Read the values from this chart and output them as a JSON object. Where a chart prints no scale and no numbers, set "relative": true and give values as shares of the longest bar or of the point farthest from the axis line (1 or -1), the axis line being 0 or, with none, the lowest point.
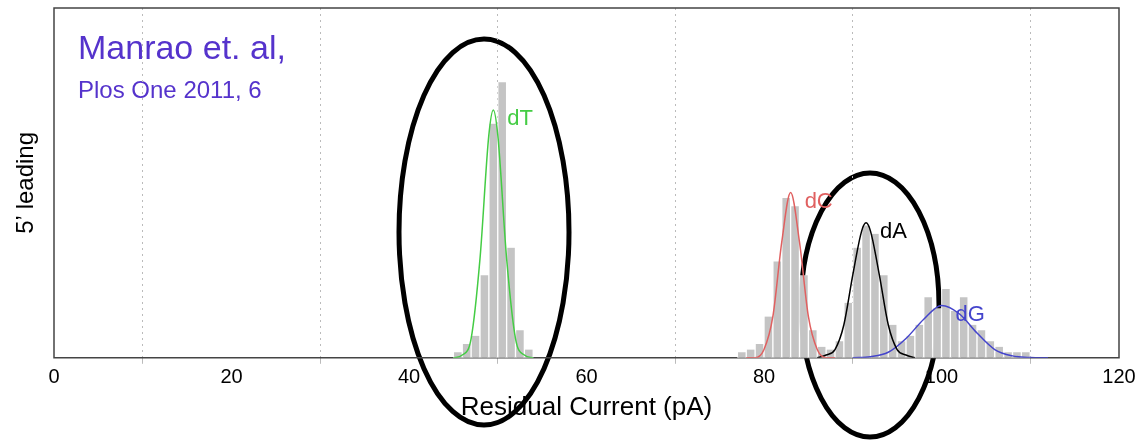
{
  "chart_data": {
    "type": "histogram",
    "relative": true,
    "xlabel": "Residual Current (pA)",
    "ylabel": "5’ leading",
    "annotations": [
      "Manrao et. al,",
      "Plos One 2011, 6"
    ],
    "xlim": [
      0,
      120
    ],
    "xticks": [
      0,
      20,
      40,
      60,
      80,
      100,
      120
    ],
    "grid": "x",
    "legend": false,
    "series": [
      {
        "type": "histogram",
        "color": "#c4c4c4",
        "bins": [
          45,
          46,
          47,
          48,
          49,
          50,
          51,
          52,
          53,
          54
        ],
        "values": [
          0.02,
          0.05,
          0.08,
          0.3,
          0.85,
          1.0,
          0.4,
          0.1,
          0.03
        ]
      },
      {
        "type": "histogram",
        "color": "#c4c4c4",
        "bins": [
          77,
          78,
          79,
          80,
          81,
          82,
          83,
          84,
          85,
          86,
          87,
          88,
          89,
          90,
          91,
          92,
          93,
          94,
          95,
          96,
          97,
          98,
          99,
          100,
          101,
          102,
          103,
          104,
          105,
          106,
          107,
          108,
          109,
          110
        ],
        "values": [
          0.02,
          0.03,
          0.05,
          0.15,
          0.35,
          0.58,
          0.55,
          0.3,
          0.1,
          0.04,
          0.03,
          0.06,
          0.2,
          0.4,
          0.48,
          0.45,
          0.3,
          0.12,
          0.06,
          0.08,
          0.12,
          0.22,
          0.18,
          0.25,
          0.17,
          0.22,
          0.12,
          0.1,
          0.06,
          0.04,
          0.02,
          0.02,
          0.02
        ]
      },
      {
        "type": "line",
        "name": "dT",
        "color": "#44cc44",
        "x": [
          45,
          46,
          47,
          48,
          49,
          49.5,
          50,
          51,
          52,
          53,
          54
        ],
        "values": [
          0,
          0.01,
          0.07,
          0.36,
          0.81,
          0.9,
          0.81,
          0.36,
          0.07,
          0.01,
          0
        ]
      },
      {
        "type": "line",
        "name": "dC",
        "color": "#e06060",
        "x": [
          78,
          79,
          80,
          81,
          82,
          83,
          84,
          85,
          86,
          87,
          88
        ],
        "values": [
          0,
          0,
          0.03,
          0.15,
          0.42,
          0.6,
          0.42,
          0.15,
          0.03,
          0,
          0
        ]
      },
      {
        "type": "line",
        "name": "dA",
        "color": "#000000",
        "x": [
          86,
          87,
          88,
          89,
          90,
          91,
          91.5,
          92,
          93,
          94,
          95,
          96,
          97
        ],
        "values": [
          0,
          0.01,
          0.03,
          0.12,
          0.3,
          0.46,
          0.49,
          0.46,
          0.3,
          0.12,
          0.03,
          0.01,
          0
        ]
      },
      {
        "type": "line",
        "name": "dG",
        "color": "#4444cc",
        "x": [
          90,
          92,
          94,
          96,
          98,
          100,
          102,
          104,
          106,
          108,
          110,
          112
        ],
        "values": [
          0,
          0.004,
          0.02,
          0.07,
          0.14,
          0.19,
          0.16,
          0.09,
          0.03,
          0.007,
          0.001,
          0
        ]
      }
    ]
  }
}
